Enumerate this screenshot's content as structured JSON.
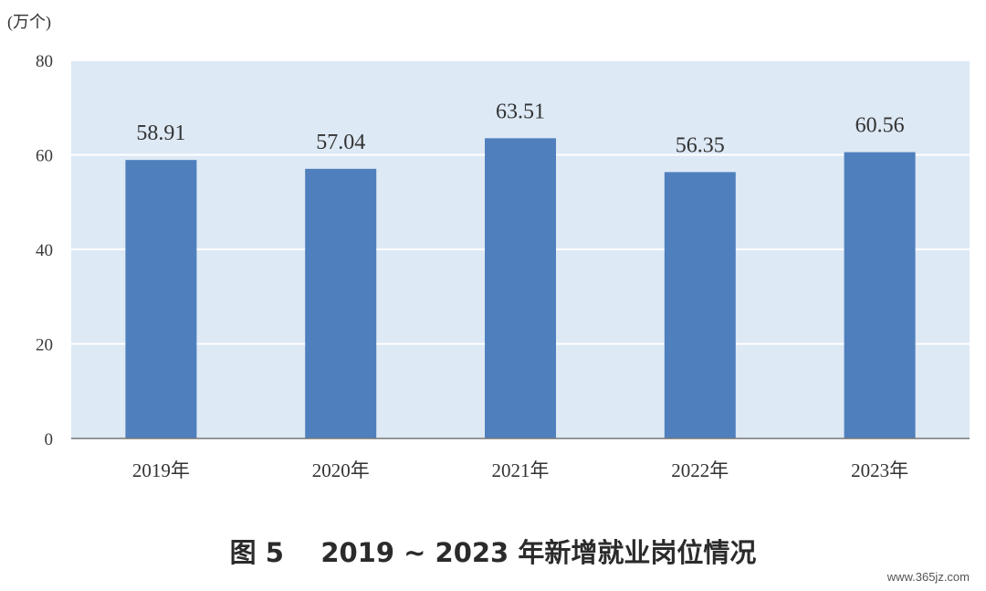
{
  "chart_data": {
    "type": "bar",
    "unit_label": "(万个)",
    "categories": [
      "2019年",
      "2020年",
      "2021年",
      "2022年",
      "2023年"
    ],
    "values": [
      58.91,
      57.04,
      63.51,
      56.35,
      60.56
    ],
    "value_labels": [
      "58.91",
      "57.04",
      "63.51",
      "56.35",
      "60.56"
    ],
    "ylim": [
      0,
      80
    ],
    "yticks": [
      "0",
      "20",
      "40",
      "60",
      "80"
    ],
    "grid": true,
    "colors": {
      "bar": "#4f80bd",
      "plot_background": "#dde9f5",
      "gridline": "#ffffff",
      "axis": "#777777"
    }
  },
  "caption": "图 5    2019 ~ 2023 年新增就业岗位情况",
  "watermark": "www.365jz.com"
}
